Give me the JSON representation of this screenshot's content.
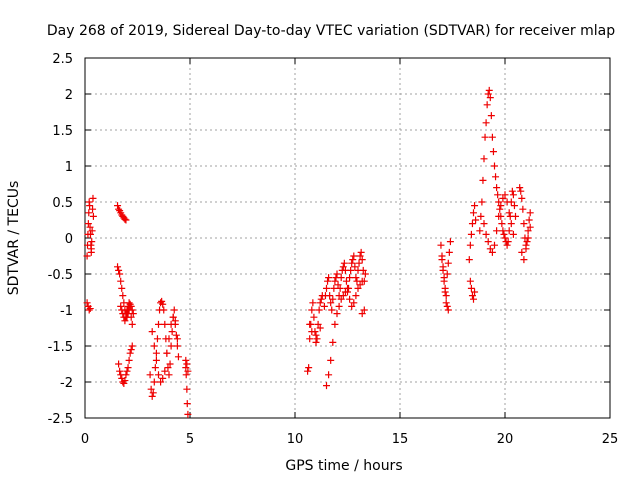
{
  "chart_data": {
    "type": "scatter",
    "title": "Day 268 of 2019, Sidereal Day-to-day VTEC variation (SDTVAR) for receiver mlap",
    "xlabel": "GPS time / hours",
    "ylabel": "SDTVAR / TECUs",
    "xlim": [
      0,
      25
    ],
    "ylim": [
      -2.5,
      2.5
    ],
    "xticks": [
      "0",
      "5",
      "10",
      "15",
      "20",
      "25"
    ],
    "yticks": [
      "2.5",
      "2",
      "1.5",
      "1",
      "0.5",
      "0",
      "-0.5",
      "-1",
      "-1.5",
      "-2",
      "-2.5"
    ],
    "grid": true,
    "marker_color": "#ee0000",
    "series": [
      {
        "name": "SDTVAR",
        "x": [
          0.1,
          0.12,
          0.14,
          0.16,
          0.18,
          0.2,
          0.22,
          0.24,
          0.26,
          0.28,
          0.3,
          0.32,
          0.34,
          0.36,
          0.38,
          0.4,
          0.1,
          0.15,
          0.2,
          0.25,
          0.3,
          1.55,
          1.6,
          1.65,
          1.7,
          1.75,
          1.8,
          1.85,
          1.9,
          1.95,
          1.55,
          1.6,
          1.65,
          1.7,
          1.75,
          1.8,
          1.85,
          1.9,
          1.95,
          2.0,
          2.05,
          2.1,
          2.15,
          2.2,
          2.25,
          2.3,
          1.6,
          1.65,
          1.7,
          1.75,
          1.8,
          1.85,
          1.9,
          1.95,
          2.0,
          2.05,
          2.1,
          2.15,
          2.2,
          2.25,
          1.7,
          1.75,
          1.8,
          1.85,
          1.9,
          1.95,
          2.0,
          2.05,
          2.1,
          2.15,
          2.2,
          2.25,
          3.1,
          3.15,
          3.2,
          3.25,
          3.3,
          3.35,
          3.4,
          3.45,
          3.5,
          3.55,
          3.6,
          3.65,
          3.7,
          3.75,
          3.8,
          3.85,
          3.9,
          3.95,
          4.0,
          4.05,
          4.1,
          4.15,
          4.2,
          4.25,
          4.3,
          4.35,
          4.4,
          4.45,
          3.2,
          3.3,
          3.4,
          3.5,
          3.6,
          3.7,
          3.8,
          3.9,
          4.0,
          4.1,
          4.2,
          4.3,
          4.4,
          4.8,
          4.82,
          4.85,
          4.87,
          4.9,
          4.8,
          4.85,
          4.9,
          10.6,
          10.65,
          10.7,
          10.75,
          10.8,
          10.85,
          10.9,
          10.95,
          11.0,
          11.05,
          11.1,
          11.15,
          11.2,
          11.25,
          11.3,
          11.4,
          11.45,
          11.5,
          11.55,
          11.6,
          11.65,
          11.7,
          11.75,
          11.8,
          11.85,
          11.9,
          11.95,
          12.0,
          12.05,
          12.1,
          12.15,
          12.2,
          12.25,
          12.3,
          12.35,
          12.4,
          12.45,
          12.5,
          12.55,
          12.6,
          12.65,
          12.7,
          12.75,
          12.8,
          12.85,
          12.9,
          12.95,
          13.0,
          13.05,
          13.1,
          13.15,
          13.2,
          13.25,
          13.3,
          13.35,
          11.5,
          11.6,
          11.7,
          11.8,
          11.9,
          12.0,
          12.1,
          12.2,
          12.3,
          12.4,
          12.5,
          12.6,
          12.7,
          12.8,
          12.9,
          13.0,
          13.1,
          13.2,
          10.7,
          10.8,
          11.0,
          11.2,
          13.2,
          13.3,
          16.95,
          17.0,
          17.05,
          17.1,
          17.15,
          17.2,
          17.25,
          17.3,
          17.0,
          17.05,
          17.1,
          17.15,
          17.2,
          17.25,
          17.3,
          17.35,
          17.4,
          18.3,
          18.35,
          18.4,
          18.45,
          18.5,
          18.55,
          18.6,
          18.35,
          18.4,
          18.45,
          18.5,
          18.55,
          18.8,
          18.85,
          18.9,
          18.95,
          19.0,
          19.05,
          19.1,
          19.15,
          19.2,
          19.25,
          19.3,
          19.35,
          19.4,
          19.45,
          19.5,
          19.55,
          19.6,
          19.65,
          19.7,
          19.75,
          19.8,
          19.85,
          19.9,
          19.95,
          20.0,
          20.05,
          20.1,
          20.15,
          20.2,
          20.25,
          20.3,
          20.35,
          20.4,
          20.45,
          20.5,
          19.0,
          19.1,
          19.2,
          19.3,
          19.4,
          19.5,
          19.6,
          19.7,
          19.8,
          19.9,
          20.0,
          20.1,
          20.2,
          20.3,
          20.4,
          20.7,
          20.75,
          20.8,
          20.85,
          20.9,
          20.95,
          21.0,
          21.05,
          21.1,
          21.15,
          21.2,
          20.8,
          20.9,
          21.0,
          21.1,
          21.2
        ],
        "y": [
          -0.25,
          -0.1,
          0.05,
          0.2,
          0.35,
          0.5,
          0.45,
          0.15,
          0.05,
          -0.1,
          -0.2,
          -0.05,
          0.1,
          0.4,
          0.55,
          0.3,
          -0.9,
          -0.95,
          -1.0,
          -0.98,
          -0.15,
          0.45,
          0.4,
          0.38,
          0.35,
          0.32,
          0.3,
          0.28,
          0.26,
          0.25,
          -0.4,
          -0.45,
          -0.5,
          -0.6,
          -0.7,
          -0.8,
          -0.9,
          -1.0,
          -1.05,
          -1.1,
          -1.05,
          -1.0,
          -0.95,
          -1.1,
          -1.2,
          -1.05,
          -1.75,
          -1.85,
          -1.9,
          -1.95,
          -2.0,
          -2.02,
          -1.98,
          -1.9,
          -1.85,
          -1.8,
          -1.7,
          -1.6,
          -1.55,
          -1.5,
          -0.95,
          -1.0,
          -1.05,
          -1.1,
          -1.15,
          -1.1,
          -1.0,
          -0.95,
          -0.9,
          -0.92,
          -0.95,
          -1.0,
          -1.9,
          -2.1,
          -2.2,
          -2.15,
          -2.0,
          -1.8,
          -1.6,
          -1.4,
          -1.2,
          -1.0,
          -0.9,
          -0.88,
          -0.92,
          -1.0,
          -1.2,
          -1.4,
          -1.6,
          -1.8,
          -1.9,
          -1.75,
          -1.5,
          -1.3,
          -1.1,
          -1.0,
          -1.15,
          -1.35,
          -1.5,
          -1.65,
          -1.3,
          -1.5,
          -1.7,
          -1.9,
          -2.0,
          -1.95,
          -1.85,
          -1.6,
          -1.4,
          -1.2,
          -1.1,
          -1.2,
          -1.4,
          -1.8,
          -1.9,
          -2.1,
          -2.3,
          -2.45,
          -1.7,
          -1.75,
          -1.85,
          -1.85,
          -1.8,
          -1.4,
          -1.2,
          -1.0,
          -0.9,
          -1.1,
          -1.3,
          -1.45,
          -1.4,
          -1.2,
          -1.0,
          -0.9,
          -0.85,
          -0.8,
          -0.95,
          -0.8,
          -0.7,
          -0.6,
          -0.55,
          -0.8,
          -0.9,
          -1.0,
          -0.85,
          -0.7,
          -0.6,
          -0.55,
          -0.5,
          -0.65,
          -0.8,
          -0.7,
          -0.55,
          -0.45,
          -0.4,
          -0.35,
          -0.45,
          -0.6,
          -0.75,
          -0.7,
          -0.55,
          -0.45,
          -0.35,
          -0.3,
          -0.25,
          -0.4,
          -0.55,
          -0.6,
          -0.45,
          -0.35,
          -0.25,
          -0.2,
          -0.3,
          -0.45,
          -0.6,
          -0.5,
          -2.05,
          -1.9,
          -1.7,
          -1.45,
          -1.2,
          -1.05,
          -0.95,
          -0.85,
          -0.8,
          -0.75,
          -0.7,
          -0.85,
          -0.95,
          -0.9,
          -0.8,
          -0.7,
          -0.65,
          -0.6,
          -1.2,
          -1.3,
          -1.35,
          -1.25,
          -1.05,
          -1.0,
          -0.1,
          -0.25,
          -0.4,
          -0.6,
          -0.75,
          -0.9,
          -0.95,
          -1.0,
          -0.3,
          -0.45,
          -0.55,
          -0.7,
          -0.8,
          -0.5,
          -0.35,
          -0.2,
          -0.05,
          -0.3,
          -0.1,
          0.05,
          0.2,
          0.35,
          0.45,
          0.25,
          -0.6,
          -0.7,
          -0.8,
          -0.85,
          -0.75,
          0.1,
          0.3,
          0.5,
          0.8,
          1.1,
          1.4,
          1.6,
          1.85,
          2.0,
          2.05,
          1.95,
          1.7,
          1.4,
          1.2,
          1.0,
          0.85,
          0.7,
          0.6,
          0.5,
          0.4,
          0.3,
          0.2,
          0.1,
          0.05,
          0.0,
          -0.05,
          -0.1,
          -0.05,
          0.1,
          0.3,
          0.5,
          0.65,
          0.6,
          0.45,
          0.3,
          0.2,
          0.05,
          -0.05,
          -0.15,
          -0.2,
          -0.1,
          0.1,
          0.3,
          0.45,
          0.55,
          0.6,
          0.5,
          0.35,
          0.2,
          0.05,
          0.7,
          0.65,
          0.55,
          0.4,
          0.2,
          0.0,
          -0.1,
          -0.05,
          0.1,
          0.25,
          0.35,
          -0.2,
          -0.3,
          -0.15,
          0.0,
          0.15
        ]
      }
    ]
  }
}
